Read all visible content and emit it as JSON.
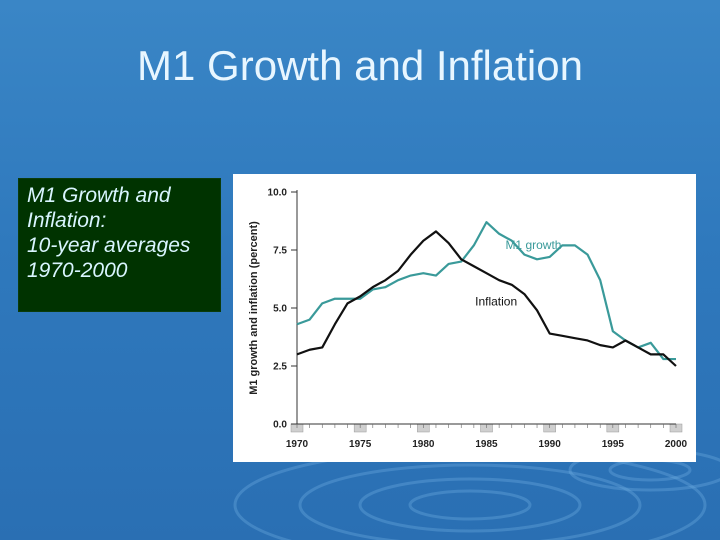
{
  "slide": {
    "title": "M1 Growth and Inflation",
    "caption": [
      "M1 Growth and",
      "Inflation:",
      "10-year averages",
      "1970-2000"
    ]
  },
  "colors": {
    "m1": "#3a9a9a",
    "inflation": "#111111",
    "caption_bg": "#003300"
  },
  "chart_data": {
    "type": "line",
    "title": "",
    "xlabel": "",
    "ylabel": "M1 growth and inflation (percent)",
    "xlim": [
      1970,
      2000
    ],
    "ylim": [
      0,
      10
    ],
    "xticks": [
      "1970",
      "1975",
      "1980",
      "1985",
      "1990",
      "1995",
      "2000"
    ],
    "yticks": [
      "0.0",
      "2.5",
      "5.0",
      "7.5",
      "10.0"
    ],
    "series": [
      {
        "name": "M1 growth",
        "x": [
          1970,
          1971,
          1972,
          1973,
          1974,
          1975,
          1976,
          1977,
          1978,
          1979,
          1980,
          1981,
          1982,
          1983,
          1984,
          1985,
          1986,
          1987,
          1988,
          1989,
          1990,
          1991,
          1992,
          1993,
          1994,
          1995,
          1996,
          1997,
          1998,
          1999,
          2000
        ],
        "values": [
          4.3,
          4.5,
          5.2,
          5.4,
          5.4,
          5.4,
          5.8,
          5.9,
          6.2,
          6.4,
          6.5,
          6.4,
          6.9,
          7.0,
          7.7,
          8.7,
          8.2,
          7.9,
          7.3,
          7.1,
          7.2,
          7.7,
          7.7,
          7.3,
          6.2,
          4.0,
          3.6,
          3.3,
          3.5,
          2.8,
          2.8
        ]
      },
      {
        "name": "Inflation",
        "x": [
          1970,
          1971,
          1972,
          1973,
          1974,
          1975,
          1976,
          1977,
          1978,
          1979,
          1980,
          1981,
          1982,
          1983,
          1984,
          1985,
          1986,
          1987,
          1988,
          1989,
          1990,
          1991,
          1992,
          1993,
          1994,
          1995,
          1996,
          1997,
          1998,
          1999,
          2000
        ],
        "values": [
          3.0,
          3.2,
          3.3,
          4.3,
          5.2,
          5.5,
          5.9,
          6.2,
          6.6,
          7.3,
          7.9,
          8.3,
          7.8,
          7.1,
          6.8,
          6.5,
          6.2,
          6.0,
          5.6,
          4.9,
          3.9,
          3.8,
          3.7,
          3.6,
          3.4,
          3.3,
          3.6,
          3.3,
          3.0,
          3.0,
          2.5
        ]
      }
    ],
    "series_labels": [
      "M1 growth",
      "Inflation"
    ],
    "shaded_years": [
      1970,
      1975,
      1980,
      1985,
      1990,
      1995,
      2000
    ]
  }
}
